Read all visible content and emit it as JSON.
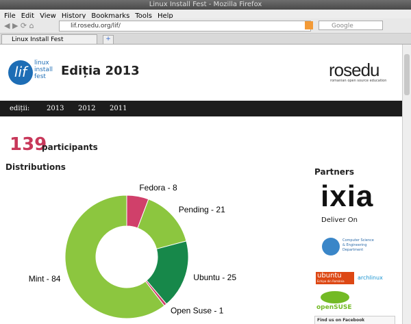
{
  "window": {
    "title": "Linux Install Fest - Mozilla Firefox",
    "menu": [
      "File",
      "Edit",
      "View",
      "History",
      "Bookmarks",
      "Tools",
      "Help"
    ],
    "url": "lif.rosedu.org/lif/",
    "search_placeholder": "Google",
    "tab": "Linux Install Fest"
  },
  "header": {
    "logo_mark": "lif",
    "logo_text": [
      "linux",
      "install",
      "fest"
    ],
    "title": "Ediția 2013",
    "rosedu": "rosedu",
    "rosedu_tagline": "romanian open source education"
  },
  "nav": {
    "label": "ediții:",
    "items": [
      "2013",
      "2012",
      "2011"
    ]
  },
  "participants": {
    "count": 139,
    "label": "participants"
  },
  "distributions": {
    "title": "Distributions",
    "type": "donut",
    "slices": [
      {
        "label": "Fedora - 8",
        "value": 8,
        "color": "#d0406a"
      },
      {
        "label": "Pending - 21",
        "value": 21,
        "color": "#8cc63f"
      },
      {
        "label": "Ubuntu - 25",
        "value": 25,
        "color": "#17884a"
      },
      {
        "label": "Open Suse - 1",
        "value": 1,
        "color": "#d0406a"
      },
      {
        "label": "Mint - 84",
        "value": 84,
        "color": "#8cc63f"
      }
    ]
  },
  "partners": {
    "title": "Partners",
    "ixia": "ixia",
    "ixia_tagline": "Deliver On",
    "cse": [
      "Computer Science",
      "& Engineering",
      "Department"
    ],
    "ubuntu": "ubuntu",
    "ubuntu_sub": "Echipa din România",
    "archlinux": "archlinux",
    "opensuse": "openSUSE",
    "facebook": "Find us on Facebook"
  }
}
